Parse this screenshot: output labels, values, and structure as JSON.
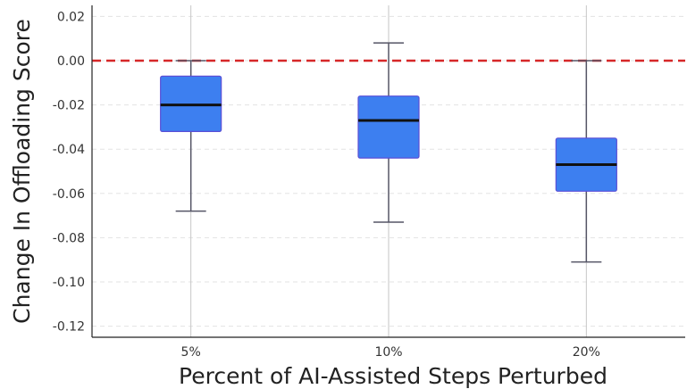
{
  "chart_data": {
    "type": "box",
    "xlabel": "Percent of AI-Assisted Steps Perturbed",
    "ylabel": "Change In Offloading Score",
    "ylim": [
      -0.125,
      0.025
    ],
    "yticks": [
      0.02,
      0.0,
      -0.02,
      -0.04,
      -0.06,
      -0.08,
      -0.1,
      -0.12
    ],
    "ytick_labels": [
      "0.02",
      "0.00",
      "-0.02",
      "-0.04",
      "-0.06",
      "-0.08",
      "-0.10",
      "-0.12"
    ],
    "grid": true,
    "reference_line": {
      "y": 0.0,
      "style": "dashed",
      "color": "#d62728"
    },
    "box_color": "#3d7ff0",
    "box_edge_color": "#5a4fd6",
    "median_color": "#111111",
    "whisker_color": "#555566",
    "categories": [
      "5%",
      "10%",
      "20%"
    ],
    "boxes": [
      {
        "category": "5%",
        "whisker_low": -0.068,
        "q1": -0.032,
        "median": -0.02,
        "q3": -0.007,
        "whisker_high": 0.0
      },
      {
        "category": "10%",
        "whisker_low": -0.073,
        "q1": -0.044,
        "median": -0.027,
        "q3": -0.016,
        "whisker_high": 0.008
      },
      {
        "category": "20%",
        "whisker_low": -0.091,
        "q1": -0.059,
        "median": -0.047,
        "q3": -0.035,
        "whisker_high": 0.0
      }
    ]
  }
}
